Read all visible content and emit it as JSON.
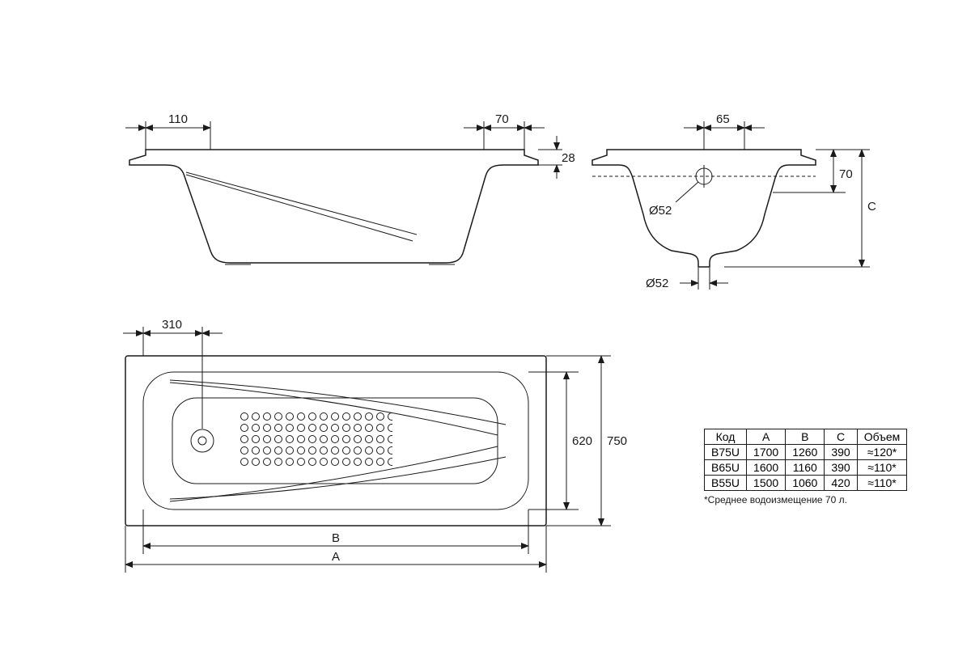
{
  "colors": {
    "line": "#1a1a1a",
    "bg": "#ffffff"
  },
  "sideView": {
    "dims": {
      "d110": "110",
      "d70": "70",
      "d28": "28"
    }
  },
  "endView": {
    "dims": {
      "d65": "65",
      "d70": "70",
      "phi52a": "Ø52",
      "phi52b": "Ø52",
      "C": "C"
    }
  },
  "topView": {
    "dims": {
      "d310": "310",
      "d620": "620",
      "d750": "750",
      "A": "A",
      "B": "B"
    }
  },
  "table": {
    "columns": [
      "Код",
      "A",
      "B",
      "C",
      "Объем"
    ],
    "rows": [
      [
        "B75U",
        "1700",
        "1260",
        "390",
        "≈120*"
      ],
      [
        "B65U",
        "1600",
        "1160",
        "390",
        "≈110*"
      ],
      [
        "B55U",
        "1500",
        "1060",
        "420",
        "≈110*"
      ]
    ]
  },
  "footnote": "*Среднее водоизмещение 70 л."
}
